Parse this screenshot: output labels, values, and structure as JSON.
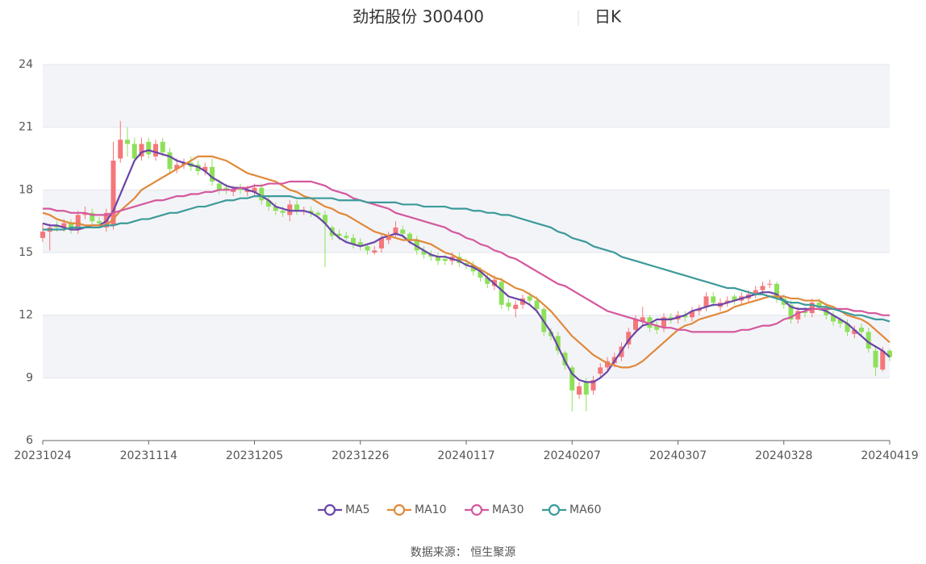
{
  "chart_data": {
    "type": "candlestick",
    "title": "劲拓股份 300400",
    "subtitle": "日K",
    "source": "数据来源： 恒生聚源",
    "categories": [
      "20231024",
      null,
      null,
      null,
      null,
      null,
      null,
      null,
      null,
      null,
      null,
      null,
      null,
      null,
      null,
      "20231114",
      null,
      null,
      null,
      null,
      null,
      null,
      null,
      null,
      null,
      null,
      null,
      null,
      null,
      null,
      "20231205",
      null,
      null,
      null,
      null,
      null,
      null,
      null,
      null,
      null,
      null,
      null,
      null,
      null,
      null,
      "20231226",
      null,
      null,
      null,
      null,
      null,
      null,
      null,
      null,
      null,
      null,
      null,
      null,
      null,
      null,
      "20240117",
      null,
      null,
      null,
      null,
      null,
      null,
      null,
      null,
      null,
      null,
      null,
      null,
      null,
      null,
      "20240207",
      null,
      null,
      null,
      null,
      null,
      null,
      null,
      null,
      null,
      null,
      null,
      null,
      null,
      null,
      "20240307",
      null,
      null,
      null,
      null,
      null,
      null,
      null,
      null,
      null,
      null,
      null,
      null,
      null,
      null,
      "20240328",
      null,
      null,
      null,
      null,
      null,
      null,
      null,
      null,
      null,
      null,
      null,
      null,
      null,
      null,
      "20240419"
    ],
    "open": [
      15.7,
      16.0,
      16.3,
      16.2,
      16.4,
      16.1,
      16.8,
      16.9,
      16.5,
      16.2,
      16.3,
      19.5,
      20.4,
      20.2,
      19.6,
      20.3,
      19.6,
      20.3,
      19.8,
      19.0,
      19.2,
      19.3,
      19.2,
      18.9,
      19.1,
      18.3,
      18.1,
      17.9,
      18.1,
      17.9,
      17.9,
      18.1,
      17.5,
      17.2,
      17.0,
      16.8,
      17.3,
      17.0,
      17.0,
      16.9,
      16.8,
      16.2,
      15.9,
      15.8,
      15.7,
      15.5,
      15.3,
      15.0,
      15.2,
      15.6,
      15.9,
      16.1,
      15.9,
      15.6,
      15.1,
      14.9,
      14.8,
      14.7,
      14.6,
      14.8,
      14.5,
      14.4,
      14.1,
      13.8,
      13.4,
      13.6,
      12.6,
      12.3,
      12.5,
      12.9,
      12.7,
      12.3,
      11.2,
      11.0,
      10.2,
      9.5,
      8.2,
      8.8,
      8.4,
      9.2,
      9.5,
      9.7,
      10.0,
      10.6,
      11.3,
      11.7,
      11.9,
      11.5,
      11.4,
      11.9,
      11.8,
      12.0,
      11.9,
      12.2,
      12.4,
      12.9,
      12.4,
      12.6,
      12.9,
      12.7,
      12.8,
      13.0,
      13.2,
      13.5,
      13.5,
      12.8,
      12.5,
      11.8,
      12.2,
      12.1,
      12.6,
      12.4,
      12.0,
      11.8,
      11.6,
      11.1,
      11.4,
      11.2,
      10.3,
      9.4,
      10.3
    ],
    "close": [
      16.0,
      16.2,
      16.2,
      16.4,
      16.1,
      16.8,
      16.9,
      16.5,
      16.4,
      16.9,
      19.4,
      20.4,
      20.2,
      19.5,
      20.2,
      19.7,
      20.2,
      19.8,
      19.0,
      19.2,
      19.3,
      19.1,
      18.9,
      19.1,
      18.4,
      18.0,
      18.0,
      18.0,
      18.0,
      18.0,
      18.1,
      17.5,
      17.2,
      17.0,
      16.9,
      17.3,
      17.0,
      17.0,
      16.9,
      16.8,
      16.4,
      15.8,
      15.8,
      15.7,
      15.4,
      15.3,
      15.1,
      15.1,
      15.7,
      15.8,
      16.2,
      15.9,
      15.6,
      15.1,
      14.9,
      14.8,
      14.6,
      14.6,
      14.8,
      14.5,
      14.4,
      14.1,
      13.8,
      13.5,
      13.7,
      12.5,
      12.4,
      12.5,
      12.8,
      12.7,
      12.3,
      11.2,
      11.0,
      10.3,
      9.6,
      8.4,
      8.6,
      8.2,
      8.9,
      9.5,
      9.8,
      10.0,
      10.5,
      11.2,
      11.8,
      11.9,
      11.4,
      11.3,
      11.9,
      11.8,
      12.0,
      11.9,
      12.2,
      12.3,
      12.9,
      12.6,
      12.6,
      12.7,
      12.7,
      12.9,
      13.0,
      13.2,
      13.4,
      13.5,
      12.8,
      12.5,
      11.8,
      12.2,
      12.1,
      12.6,
      12.4,
      12.0,
      11.7,
      11.6,
      11.2,
      11.3,
      11.2,
      10.4,
      9.5,
      10.3,
      10.0
    ],
    "high": [
      16.4,
      16.4,
      16.5,
      16.6,
      16.6,
      17.0,
      17.2,
      17.1,
      16.7,
      17.1,
      20.3,
      21.3,
      21.0,
      20.5,
      20.5,
      20.5,
      20.4,
      20.5,
      20.0,
      19.5,
      19.5,
      19.6,
      19.4,
      19.3,
      19.5,
      18.5,
      18.3,
      18.2,
      18.3,
      18.2,
      18.3,
      18.3,
      17.7,
      17.4,
      17.2,
      17.5,
      17.5,
      17.2,
      17.2,
      17.0,
      17.0,
      16.3,
      16.1,
      16.0,
      15.9,
      15.7,
      15.4,
      15.3,
      15.9,
      16.0,
      16.5,
      16.3,
      16.0,
      15.8,
      15.3,
      15.1,
      15.0,
      14.9,
      15.0,
      15.0,
      14.7,
      14.6,
      14.3,
      14.0,
      13.9,
      13.8,
      12.8,
      12.7,
      13.0,
      13.1,
      12.9,
      12.4,
      11.4,
      11.2,
      10.3,
      9.6,
      8.8,
      9.0,
      9.1,
      9.7,
      10.0,
      10.2,
      10.7,
      11.4,
      12.0,
      12.4,
      12.0,
      11.7,
      12.1,
      12.1,
      12.2,
      12.2,
      12.4,
      12.5,
      13.1,
      13.1,
      12.8,
      12.9,
      13.0,
      13.1,
      13.2,
      13.4,
      13.6,
      13.7,
      13.6,
      13.0,
      12.7,
      12.4,
      12.4,
      12.8,
      12.8,
      12.6,
      12.2,
      11.9,
      11.8,
      11.5,
      11.6,
      11.4,
      10.5,
      10.5,
      10.4
    ],
    "low": [
      15.5,
      15.1,
      16.0,
      16.0,
      15.9,
      15.9,
      16.6,
      16.3,
      16.2,
      16.0,
      16.1,
      19.3,
      19.6,
      19.3,
      19.4,
      19.5,
      19.4,
      19.6,
      18.8,
      18.8,
      19.0,
      18.9,
      18.7,
      18.7,
      18.2,
      17.8,
      17.8,
      17.7,
      17.8,
      17.7,
      17.7,
      17.3,
      17.0,
      16.8,
      16.7,
      16.5,
      16.8,
      16.8,
      16.7,
      16.6,
      14.3,
      15.6,
      15.6,
      15.5,
      15.2,
      15.1,
      14.9,
      14.9,
      15.0,
      15.4,
      15.7,
      15.7,
      15.4,
      14.9,
      14.7,
      14.6,
      14.4,
      14.4,
      14.4,
      14.3,
      14.2,
      13.9,
      13.6,
      13.3,
      13.2,
      12.3,
      12.2,
      11.9,
      12.3,
      12.5,
      12.1,
      11.0,
      10.8,
      10.1,
      9.4,
      7.4,
      8.0,
      7.4,
      8.2,
      9.0,
      9.3,
      9.5,
      9.8,
      10.4,
      11.1,
      11.5,
      11.2,
      11.1,
      11.2,
      11.6,
      11.6,
      11.7,
      11.7,
      12.0,
      12.2,
      12.4,
      12.2,
      12.4,
      12.5,
      12.5,
      12.6,
      12.8,
      13.0,
      13.3,
      12.6,
      12.3,
      11.6,
      11.6,
      11.9,
      11.9,
      12.2,
      11.8,
      11.5,
      11.4,
      11.0,
      10.9,
      11.0,
      10.2,
      9.1,
      9.3,
      9.8
    ],
    "up_color": "#f4777b",
    "down_color": "#8ee05a",
    "series": [
      {
        "name": "MA5",
        "color": "#6a45a8",
        "values": [
          16.4,
          16.3,
          16.3,
          16.2,
          16.1,
          16.1,
          16.2,
          16.3,
          16.3,
          16.5,
          17.0,
          17.8,
          18.6,
          19.4,
          19.8,
          19.9,
          19.8,
          19.7,
          19.6,
          19.4,
          19.3,
          19.2,
          19.1,
          18.9,
          18.6,
          18.4,
          18.2,
          18.1,
          18.1,
          18.0,
          17.9,
          17.7,
          17.5,
          17.2,
          17.1,
          17.0,
          17.0,
          17.0,
          16.9,
          16.7,
          16.4,
          16.0,
          15.7,
          15.5,
          15.4,
          15.3,
          15.4,
          15.5,
          15.7,
          15.8,
          15.9,
          15.8,
          15.5,
          15.3,
          15.1,
          14.9,
          14.8,
          14.8,
          14.7,
          14.6,
          14.4,
          14.3,
          14.1,
          13.8,
          13.5,
          13.2,
          12.9,
          12.8,
          12.7,
          12.5,
          12.2,
          11.7,
          11.2,
          10.5,
          9.8,
          9.2,
          8.9,
          8.8,
          8.8,
          9.0,
          9.3,
          9.8,
          10.3,
          10.8,
          11.2,
          11.5,
          11.6,
          11.8,
          11.8,
          11.8,
          11.9,
          12.0,
          12.2,
          12.3,
          12.4,
          12.5,
          12.5,
          12.6,
          12.7,
          12.8,
          12.9,
          13.0,
          13.1,
          13.1,
          13.0,
          12.7,
          12.4,
          12.3,
          12.3,
          12.3,
          12.3,
          12.2,
          12.0,
          11.8,
          11.6,
          11.3,
          11.0,
          10.7,
          10.5,
          10.3,
          10.0
        ]
      },
      {
        "name": "MA10",
        "color": "#e0893a",
        "values": [
          16.9,
          16.8,
          16.6,
          16.5,
          16.4,
          16.4,
          16.3,
          16.3,
          16.3,
          16.3,
          16.6,
          17.0,
          17.3,
          17.6,
          18.0,
          18.2,
          18.4,
          18.6,
          18.8,
          19.0,
          19.2,
          19.4,
          19.6,
          19.6,
          19.6,
          19.5,
          19.4,
          19.2,
          19.0,
          18.8,
          18.7,
          18.6,
          18.5,
          18.4,
          18.2,
          18.0,
          17.9,
          17.7,
          17.6,
          17.4,
          17.2,
          17.1,
          16.9,
          16.8,
          16.6,
          16.4,
          16.2,
          16.0,
          15.9,
          15.8,
          15.7,
          15.6,
          15.6,
          15.6,
          15.5,
          15.4,
          15.2,
          15.0,
          14.9,
          14.7,
          14.6,
          14.4,
          14.2,
          14.0,
          13.8,
          13.7,
          13.5,
          13.3,
          13.2,
          13.0,
          12.8,
          12.5,
          12.2,
          11.8,
          11.4,
          11.0,
          10.7,
          10.4,
          10.1,
          9.9,
          9.7,
          9.6,
          9.5,
          9.5,
          9.6,
          9.8,
          10.1,
          10.4,
          10.7,
          11.0,
          11.3,
          11.5,
          11.6,
          11.8,
          11.9,
          12.0,
          12.1,
          12.2,
          12.4,
          12.5,
          12.6,
          12.7,
          12.8,
          12.9,
          12.9,
          12.9,
          12.8,
          12.8,
          12.7,
          12.7,
          12.7,
          12.5,
          12.4,
          12.2,
          12.0,
          11.9,
          11.8,
          11.6,
          11.3,
          11.0,
          10.7
        ]
      },
      {
        "name": "MA30",
        "color": "#d4589e",
        "values": [
          17.1,
          17.1,
          17.0,
          17.0,
          16.9,
          16.9,
          16.9,
          16.8,
          16.8,
          16.8,
          16.9,
          17.0,
          17.1,
          17.2,
          17.3,
          17.4,
          17.5,
          17.5,
          17.6,
          17.7,
          17.7,
          17.8,
          17.8,
          17.9,
          17.9,
          18.0,
          18.0,
          18.0,
          18.1,
          18.1,
          18.2,
          18.2,
          18.3,
          18.3,
          18.3,
          18.4,
          18.4,
          18.4,
          18.4,
          18.3,
          18.2,
          18.0,
          17.9,
          17.8,
          17.6,
          17.5,
          17.4,
          17.3,
          17.2,
          17.1,
          16.9,
          16.8,
          16.7,
          16.6,
          16.5,
          16.4,
          16.3,
          16.2,
          16.0,
          15.9,
          15.7,
          15.6,
          15.4,
          15.3,
          15.1,
          15.0,
          14.8,
          14.7,
          14.5,
          14.3,
          14.1,
          13.9,
          13.7,
          13.5,
          13.4,
          13.2,
          13.0,
          12.8,
          12.6,
          12.4,
          12.2,
          12.1,
          12.0,
          11.9,
          11.8,
          11.7,
          11.6,
          11.5,
          11.4,
          11.4,
          11.3,
          11.3,
          11.2,
          11.2,
          11.2,
          11.2,
          11.2,
          11.2,
          11.2,
          11.3,
          11.3,
          11.4,
          11.5,
          11.5,
          11.6,
          11.8,
          11.9,
          12.1,
          12.2,
          12.3,
          12.3,
          12.3,
          12.3,
          12.3,
          12.3,
          12.2,
          12.2,
          12.1,
          12.1,
          12.0,
          12.0
        ]
      },
      {
        "name": "MA60",
        "color": "#3c9a9a",
        "values": [
          16.1,
          16.1,
          16.1,
          16.1,
          16.2,
          16.2,
          16.2,
          16.2,
          16.2,
          16.3,
          16.3,
          16.4,
          16.4,
          16.5,
          16.6,
          16.6,
          16.7,
          16.8,
          16.9,
          16.9,
          17.0,
          17.1,
          17.2,
          17.2,
          17.3,
          17.4,
          17.5,
          17.5,
          17.6,
          17.6,
          17.7,
          17.7,
          17.7,
          17.7,
          17.7,
          17.7,
          17.6,
          17.6,
          17.6,
          17.6,
          17.6,
          17.6,
          17.5,
          17.5,
          17.5,
          17.5,
          17.4,
          17.4,
          17.4,
          17.4,
          17.4,
          17.3,
          17.3,
          17.3,
          17.2,
          17.2,
          17.2,
          17.2,
          17.1,
          17.1,
          17.1,
          17.0,
          17.0,
          16.9,
          16.9,
          16.8,
          16.8,
          16.7,
          16.6,
          16.5,
          16.4,
          16.3,
          16.2,
          16.0,
          15.9,
          15.7,
          15.6,
          15.5,
          15.3,
          15.2,
          15.1,
          15.0,
          14.8,
          14.7,
          14.6,
          14.5,
          14.4,
          14.3,
          14.2,
          14.1,
          14.0,
          13.9,
          13.8,
          13.7,
          13.6,
          13.5,
          13.4,
          13.3,
          13.3,
          13.2,
          13.1,
          13.0,
          13.0,
          12.9,
          12.8,
          12.7,
          12.6,
          12.6,
          12.5,
          12.5,
          12.4,
          12.4,
          12.3,
          12.2,
          12.1,
          12.0,
          12.0,
          11.9,
          11.8,
          11.8,
          11.7
        ]
      }
    ],
    "ylim": [
      6,
      24
    ],
    "yticks": [
      6,
      9,
      12,
      15,
      18,
      21,
      24
    ],
    "grid": true,
    "legend": "bottom"
  }
}
